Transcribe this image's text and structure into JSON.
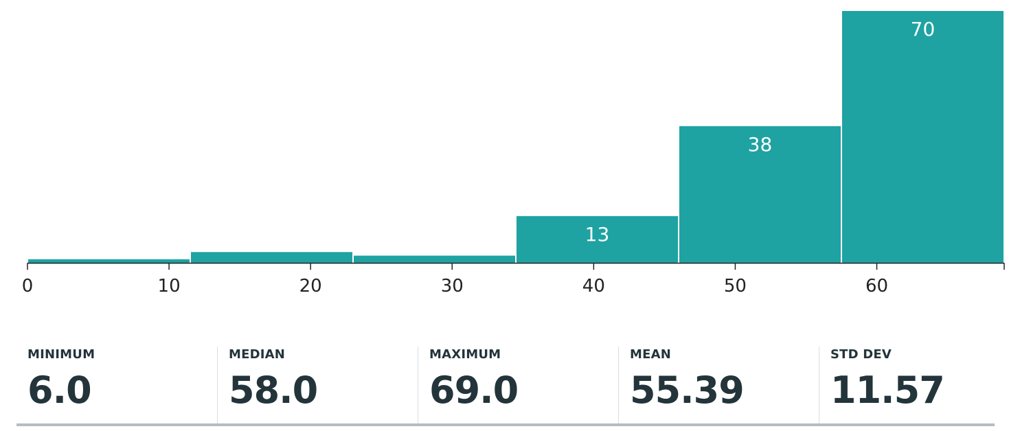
{
  "chart_data": {
    "type": "bar",
    "subtype": "histogram",
    "bins": [
      {
        "start": 0,
        "end": 11.5,
        "count": 1
      },
      {
        "start": 11.5,
        "end": 23,
        "count": 3
      },
      {
        "start": 23,
        "end": 34.5,
        "count": 2
      },
      {
        "start": 34.5,
        "end": 46,
        "count": 13
      },
      {
        "start": 46,
        "end": 57.5,
        "count": 38
      },
      {
        "start": 57.5,
        "end": 69,
        "count": 70
      }
    ],
    "bar_labels": [
      "",
      "",
      "",
      "13",
      "38",
      "70"
    ],
    "xticks": [
      0,
      10,
      20,
      30,
      40,
      50,
      60
    ],
    "xlim": [
      0,
      69
    ],
    "ylim": [
      0,
      70
    ],
    "grid": false,
    "bar_color": "#1fa2a2"
  },
  "stats": [
    {
      "label": "MINIMUM",
      "value": "6.0"
    },
    {
      "label": "MEDIAN",
      "value": "58.0"
    },
    {
      "label": "MAXIMUM",
      "value": "69.0"
    },
    {
      "label": "MEAN",
      "value": "55.39"
    },
    {
      "label": "STD DEV",
      "value": "11.57"
    }
  ]
}
